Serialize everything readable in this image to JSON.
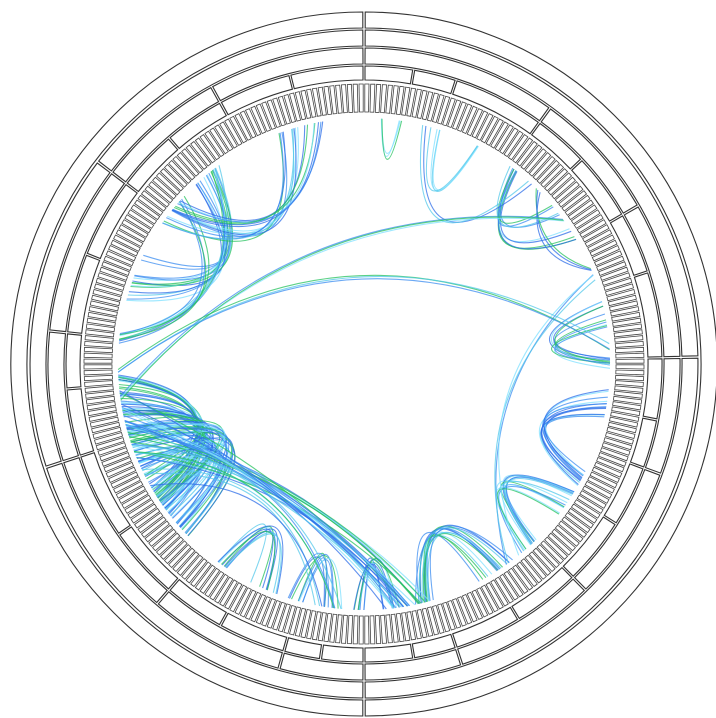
{
  "diagram": {
    "type": "hierarchical-edge-bundling",
    "leaf_count": 300,
    "palette": {
      "outline": "#333333",
      "leaf_stroke": "#444444",
      "edge_colors": [
        "#2d6de8",
        "#3b8cf0",
        "#54c8ea",
        "#25c25e",
        "#7fe0ff"
      ]
    },
    "hierarchy": {
      "ring1_boundaries": [
        0,
        150
      ],
      "ring2_boundaries": [
        0,
        74,
        150,
        210,
        256
      ],
      "ring3_boundaries": [
        0,
        30,
        50,
        74,
        92,
        113,
        135,
        150,
        163,
        184,
        210,
        230,
        256,
        276
      ],
      "ring4_boundaries": [
        0,
        8,
        15,
        30,
        39,
        50,
        60,
        74,
        84,
        92,
        102,
        113,
        124,
        135,
        142,
        150,
        157,
        163,
        174,
        184,
        196,
        210,
        221,
        230,
        243,
        256,
        266,
        276,
        288
      ]
    },
    "bundles": [
      {
        "src": [
          263,
          272
        ],
        "dst": [
          237,
          247
        ],
        "count": 14,
        "pull": 0.55
      },
      {
        "src": [
          268,
          270
        ],
        "dst": [
          229,
          231
        ],
        "count": 5,
        "pull": 0.5
      },
      {
        "src": [
          259,
          261
        ],
        "dst": [
          229,
          231
        ],
        "count": 4,
        "pull": 0.5
      },
      {
        "src": [
          283,
          289
        ],
        "dst": [
          254,
          258
        ],
        "count": 9,
        "pull": 0.6
      },
      {
        "src": [
          288,
          293
        ],
        "dst": [
          257,
          260
        ],
        "count": 7,
        "pull": 0.55
      },
      {
        "src": [
          6,
          8
        ],
        "dst": [
          3,
          4
        ],
        "count": 3,
        "pull": 0.3
      },
      {
        "src": [
          22,
          24
        ],
        "dst": [
          13,
          15
        ],
        "count": 4,
        "pull": 0.45
      },
      {
        "src": [
          47,
          51
        ],
        "dst": [
          31,
          33
        ],
        "count": 5,
        "pull": 0.45
      },
      {
        "src": [
          41,
          44
        ],
        "dst": [
          30,
          32
        ],
        "count": 4,
        "pull": 0.4
      },
      {
        "src": [
          34,
          36
        ],
        "dst": [
          11,
          13
        ],
        "count": 2,
        "pull": 0.65
      },
      {
        "src": [
          55,
          58
        ],
        "dst": [
          37,
          39
        ],
        "count": 3,
        "pull": 0.2
      },
      {
        "src": [
          62,
          68
        ],
        "dst": [
          73,
          76
        ],
        "count": 10,
        "pull": 0.45
      },
      {
        "src": [
          80,
          86
        ],
        "dst": [
          96,
          100
        ],
        "count": 12,
        "pull": 0.45
      },
      {
        "src": [
          101,
          107
        ],
        "dst": [
          113,
          117
        ],
        "count": 14,
        "pull": 0.5
      },
      {
        "src": [
          119,
          127
        ],
        "dst": [
          136,
          140
        ],
        "count": 16,
        "pull": 0.5
      },
      {
        "src": [
          143,
          148
        ],
        "dst": [
          150,
          152
        ],
        "count": 8,
        "pull": 0.4
      },
      {
        "src": [
          152,
          158
        ],
        "dst": [
          162,
          165
        ],
        "count": 8,
        "pull": 0.4
      },
      {
        "src": [
          167,
          174
        ],
        "dst": [
          178,
          181
        ],
        "count": 10,
        "pull": 0.45
      },
      {
        "src": [
          193,
          200
        ],
        "dst": [
          215,
          223
        ],
        "count": 30,
        "pull": 0.55
      },
      {
        "src": [
          186,
          205
        ],
        "dst": [
          202,
          216
        ],
        "count": 34,
        "pull": 0.6
      },
      {
        "src": [
          188,
          198
        ],
        "dst": [
          205,
          213
        ],
        "count": 20,
        "pull": 0.7
      },
      {
        "src": [
          205,
          214
        ],
        "dst": [
          137,
          146
        ],
        "count": 14,
        "pull": 0.5
      },
      {
        "src": [
          213,
          220
        ],
        "dst": [
          140,
          148
        ],
        "count": 10,
        "pull": 0.45
      },
      {
        "src": [
          207,
          210
        ],
        "dst": [
          154,
          156
        ],
        "count": 4,
        "pull": 0.5
      },
      {
        "src": [
          200,
          204
        ],
        "dst": [
          158,
          160
        ],
        "count": 3,
        "pull": 0.5
      },
      {
        "src": [
          117,
          121
        ],
        "dst": [
          57,
          59
        ],
        "count": 3,
        "pull": 0.6
      },
      {
        "src": [
          216,
          220
        ],
        "dst": [
          45,
          47
        ],
        "count": 3,
        "pull": 0.25
      },
      {
        "src": [
          221,
          224
        ],
        "dst": [
          71,
          73
        ],
        "count": 3,
        "pull": 0.3
      }
    ]
  }
}
